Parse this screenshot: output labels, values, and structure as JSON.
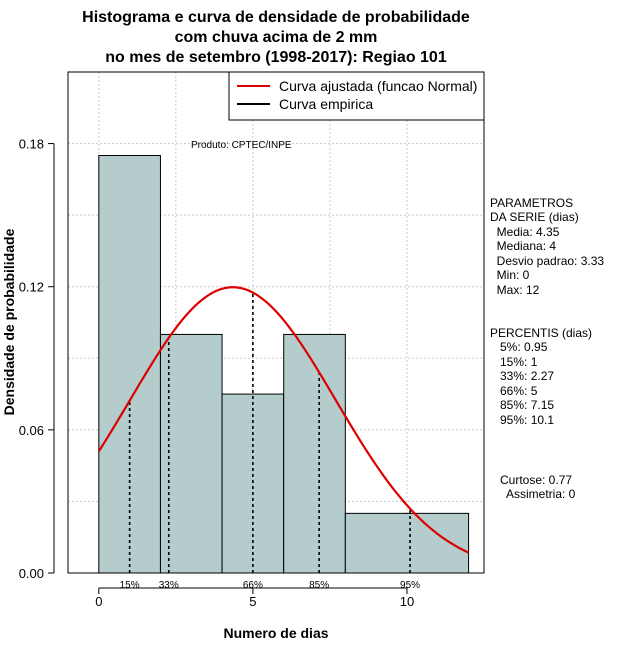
{
  "chart_data": {
    "type": "bar",
    "title_lines": [
      "Histograma e curva de densidade de probabilidade",
      "com chuva acima de 2 mm",
      "no mes de setembro (1998-2017): Regiao 101"
    ],
    "xlabel": "Numero de dias",
    "ylabel": "Densidade de probabilidade",
    "xlim": [
      -1,
      12.5
    ],
    "ylim": [
      0,
      0.21
    ],
    "x_ticks": [
      0,
      5,
      10
    ],
    "y_ticks": [
      0.0,
      0.06,
      0.12,
      0.18
    ],
    "y_tick_labels": [
      "0.00",
      "0.06",
      "0.12",
      "0.18"
    ],
    "grid": true,
    "bins": [
      {
        "x0": 0,
        "x1": 2,
        "value": 0.175
      },
      {
        "x0": 2,
        "x1": 4,
        "value": 0.1
      },
      {
        "x0": 4,
        "x1": 6,
        "value": 0.075
      },
      {
        "x0": 6,
        "x1": 8,
        "value": 0.1
      },
      {
        "x0": 8,
        "x1": 12,
        "value": 0.025
      }
    ],
    "bar_color": "#b5cccc",
    "curve_color": "#dd0000",
    "normal_fit": {
      "mean": 4.35,
      "sd": 3.33,
      "x_range": [
        0,
        12
      ]
    },
    "percentile_lines": [
      {
        "label": "15%",
        "x": 1
      },
      {
        "label": "33%",
        "x": 2.27
      },
      {
        "label": "66%",
        "x": 5
      },
      {
        "label": "85%",
        "x": 7.15
      },
      {
        "label": "95%",
        "x": 10.1
      }
    ],
    "legend": {
      "placement": "top-right",
      "entries": [
        {
          "label": "Curva ajustada (funcao Normal)",
          "color": "#dd0000"
        },
        {
          "label": "Curva empirica",
          "color": "#000000"
        }
      ]
    },
    "annotation": "Produto: CPTEC/INPE"
  },
  "stats_panel": {
    "parametros_lines": [
      "PARAMETROS",
      "DA SERIE (dias)",
      "  Media: 4.35",
      "  Mediana: 4",
      "  Desvio padrao: 3.33",
      "  Min: 0",
      "  Max: 12"
    ],
    "percentis_lines": [
      "PERCENTIS (dias)",
      "   5%: 0.95",
      "   15%: 1",
      "   33%: 2.27",
      "   66%: 5",
      "   85%: 7.15",
      "   95%: 10.1"
    ],
    "shape_lines": [
      "Curtose: 0.77",
      "  Assimetria: 0"
    ]
  }
}
